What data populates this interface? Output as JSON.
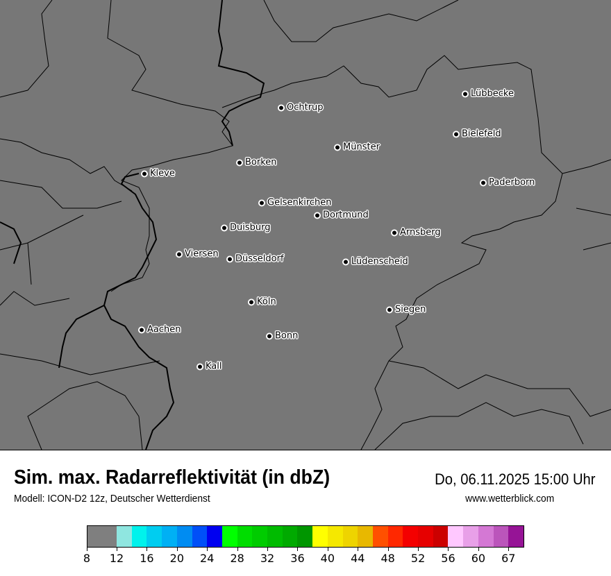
{
  "title": "Sim. max. Radarreflektivität (in dbZ)",
  "datetime": "Do, 06.11.2025 15:00 Uhr",
  "model": "Modell: ICON-D2 12z, Deutscher Wetterdienst",
  "website": "www.wetterblick.com",
  "map": {
    "background_color": "#777777",
    "cities": [
      {
        "name": "Lübbecke"
      },
      {
        "name": "Ochtrup"
      },
      {
        "name": "Bielefeld"
      },
      {
        "name": "Münster"
      },
      {
        "name": "Borken"
      },
      {
        "name": "Kleve"
      },
      {
        "name": "Paderborn"
      },
      {
        "name": "Gelsenkirchen"
      },
      {
        "name": "Dortmund"
      },
      {
        "name": "Duisburg"
      },
      {
        "name": "Arnsberg"
      },
      {
        "name": "Viersen"
      },
      {
        "name": "Düsseldorf"
      },
      {
        "name": "Lüdenscheid"
      },
      {
        "name": "Köln"
      },
      {
        "name": "Siegen"
      },
      {
        "name": "Aachen"
      },
      {
        "name": "Bonn"
      },
      {
        "name": "Kall"
      }
    ]
  },
  "legend": {
    "unit": "dbZ",
    "colors": [
      "#7f7f7f",
      "#8fe6e0",
      "#00f2ec",
      "#00cdf0",
      "#00b0f4",
      "#008cf2",
      "#0050f8",
      "#0000f0",
      "#00ff00",
      "#00dd00",
      "#00cc00",
      "#00bb00",
      "#00aa00",
      "#009600",
      "#ffff00",
      "#f5e800",
      "#eed400",
      "#e8b800",
      "#ff5000",
      "#ff2800",
      "#f40000",
      "#e60000",
      "#cc0000",
      "#ffc8ff",
      "#e8a0e8",
      "#d478d4",
      "#bb55bb",
      "#961496"
    ],
    "tick_labels": [
      "8",
      "12",
      "16",
      "20",
      "24",
      "28",
      "32",
      "36",
      "40",
      "44",
      "48",
      "52",
      "56",
      "60",
      "67"
    ]
  }
}
